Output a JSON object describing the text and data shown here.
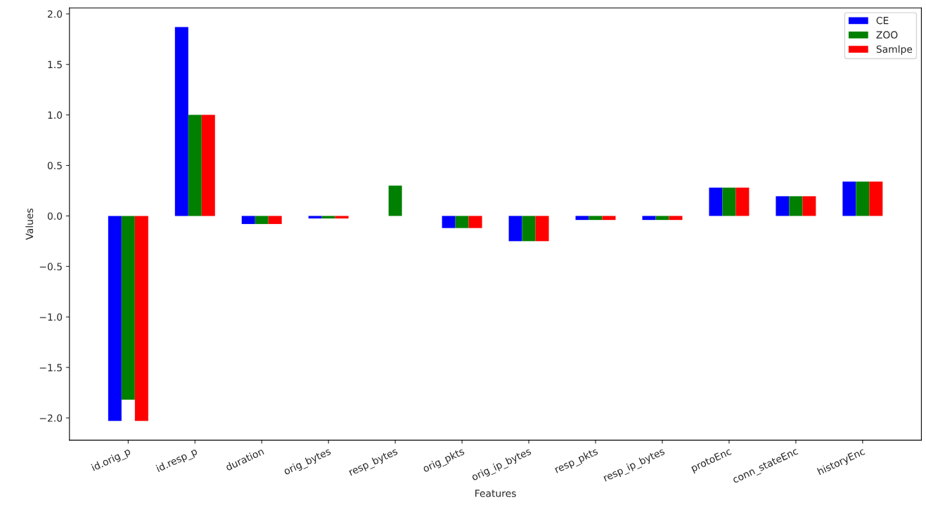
{
  "chart_data": {
    "type": "bar",
    "xlabel": "Features",
    "ylabel": "Values",
    "categories": [
      "id.orig_p",
      "id.resp_p",
      "duration",
      "orig_bytes",
      "resp_bytes",
      "orig_pkts",
      "orig_ip_bytes",
      "resp_pkts",
      "resp_ip_bytes",
      "protoEnc",
      "conn_stateEnc",
      "historyEnc"
    ],
    "series": [
      {
        "name": "CE",
        "color": "#0000ff",
        "values": [
          -2.03,
          1.87,
          -0.08,
          -0.025,
          null,
          -0.12,
          -0.25,
          -0.04,
          -0.04,
          0.28,
          0.195,
          0.34
        ]
      },
      {
        "name": "ZOO",
        "color": "#008000",
        "values": [
          -1.82,
          1.0,
          -0.08,
          -0.025,
          0.3,
          -0.12,
          -0.25,
          -0.04,
          -0.04,
          0.28,
          0.195,
          0.34
        ]
      },
      {
        "name": "Samlpe",
        "color": "#ff0000",
        "values": [
          -2.03,
          1.0,
          -0.08,
          -0.025,
          null,
          -0.12,
          -0.25,
          -0.04,
          -0.04,
          0.28,
          0.195,
          0.34
        ]
      }
    ],
    "ylim": [
      -2.22,
      2.06
    ],
    "yticks": [
      {
        "value": -2,
        "label": "−2.0"
      },
      {
        "value": -1.5,
        "label": "−1.5"
      },
      {
        "value": -1,
        "label": "−1.0"
      },
      {
        "value": -0.5,
        "label": "−0.5"
      },
      {
        "value": 0,
        "label": "0.0"
      },
      {
        "value": 0.5,
        "label": "0.5"
      },
      {
        "value": 1,
        "label": "1.0"
      },
      {
        "value": 1.5,
        "label": "1.5"
      },
      {
        "value": 2,
        "label": "2.0"
      }
    ],
    "legend": "top right",
    "grid": false
  }
}
